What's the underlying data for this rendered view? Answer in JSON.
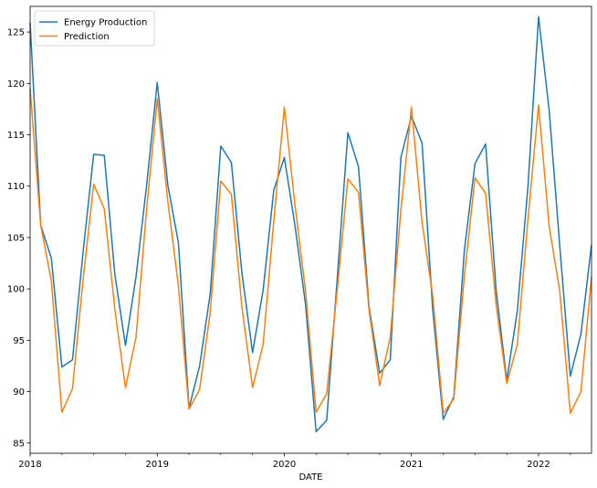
{
  "chart_data": {
    "type": "line",
    "xlabel": "DATE",
    "ylabel": "",
    "title": "",
    "x_start": "2018-01",
    "x_end": "2022-06",
    "xlim": [
      "2018-01",
      "2022-06"
    ],
    "ylim": [
      84,
      127.5
    ],
    "yticks": [
      85,
      90,
      95,
      100,
      105,
      110,
      115,
      120,
      125
    ],
    "xticks": [
      {
        "date": "2018-01",
        "label": "2018"
      },
      {
        "date": "2019-01",
        "label": "2019"
      },
      {
        "date": "2020-01",
        "label": "2020"
      },
      {
        "date": "2021-01",
        "label": "2021"
      },
      {
        "date": "2022-01",
        "label": "2022"
      }
    ],
    "grid": false,
    "legend": "top-left",
    "series": [
      {
        "name": "Energy Production",
        "color": "#1f77b4",
        "values": [
          125.9,
          106.2,
          103.0,
          92.4,
          93.1,
          103.6,
          113.1,
          113.0,
          101.4,
          94.5,
          101.2,
          110.1,
          120.1,
          110.1,
          104.5,
          88.4,
          92.5,
          99.5,
          113.9,
          112.3,
          101.5,
          93.8,
          99.9,
          109.6,
          112.8,
          106.2,
          98.5,
          86.1,
          87.2,
          101.1,
          115.2,
          111.9,
          98.2,
          91.8,
          93.1,
          112.8,
          116.8,
          114.2,
          98.1,
          87.3,
          89.5,
          103.8,
          112.2,
          114.1,
          99.8,
          91.1,
          97.9,
          110.0,
          126.5,
          117.4,
          104.2,
          91.5,
          95.6,
          104.3
        ]
      },
      {
        "name": "Prediction",
        "color": "#ff7f0e",
        "values": [
          119.5,
          106.2,
          100.8,
          88.0,
          90.3,
          100.9,
          110.2,
          107.8,
          98.0,
          90.4,
          95.3,
          107.8,
          118.5,
          108.5,
          100.3,
          88.3,
          90.2,
          97.7,
          110.5,
          109.2,
          98.2,
          90.4,
          94.6,
          106.6,
          117.7,
          108.2,
          99.8,
          88.0,
          89.8,
          100.0,
          110.7,
          109.4,
          97.9,
          90.6,
          95.3,
          107.6,
          117.7,
          106.5,
          99.4,
          87.9,
          89.3,
          101.3,
          110.8,
          109.3,
          98.4,
          90.8,
          94.6,
          106.8,
          117.9,
          106.1,
          99.8,
          87.9,
          90.0,
          101.2
        ]
      }
    ]
  }
}
